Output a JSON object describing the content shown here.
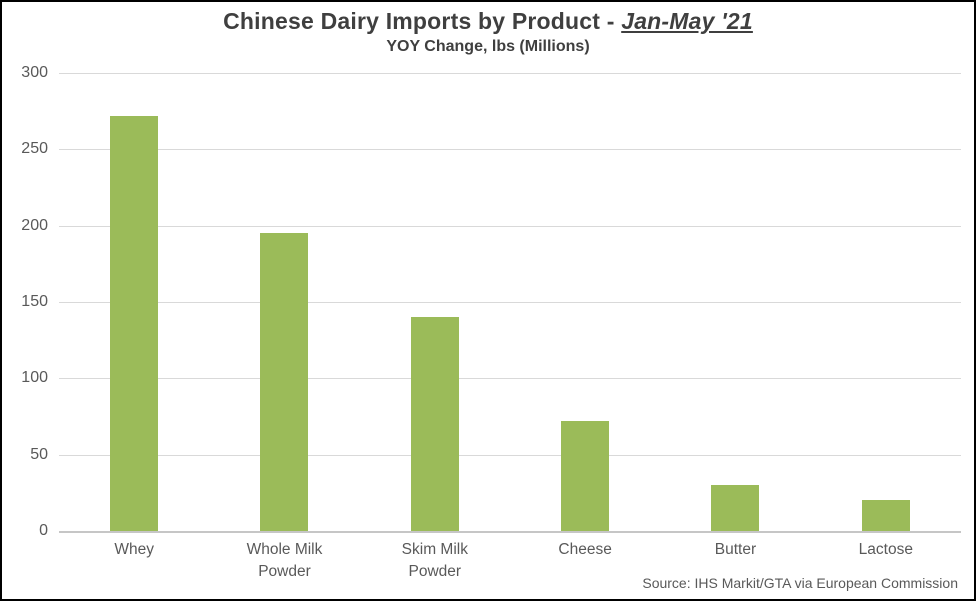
{
  "title": {
    "main": "Chinese Dairy Imports by Product - ",
    "highlight": "Jan-May '21",
    "subtitle": "YOY Change, lbs (Millions)"
  },
  "source": "Source: IHS Markit/GTA via European Commission",
  "colors": {
    "bar": "#9bbb59",
    "gridline": "#d9d9d9",
    "zero_axis": "#c6c6c6",
    "title_text": "#3f3f3f",
    "label_text": "#595959",
    "frame": "#000000"
  },
  "chart_data": {
    "type": "bar",
    "title": "Chinese Dairy Imports by Product - Jan-May '21",
    "subtitle": "YOY Change, lbs (Millions)",
    "categories": [
      "Whey",
      "Whole Milk Powder",
      "Skim Milk Powder",
      "Cheese",
      "Butter",
      "Lactose"
    ],
    "values": [
      272,
      195,
      140,
      72,
      30,
      20
    ],
    "xlabel": "",
    "ylabel": "",
    "ylim": [
      0,
      300
    ],
    "y_ticks": [
      0,
      50,
      100,
      150,
      200,
      250,
      300
    ],
    "grid": true,
    "legend": false,
    "bar_color": "#9bbb59",
    "source": "Source: IHS Markit/GTA via European Commission"
  }
}
